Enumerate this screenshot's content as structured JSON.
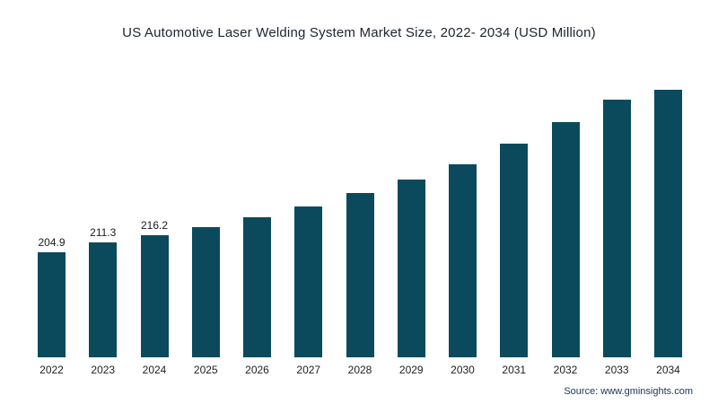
{
  "title": "US Automotive Laser Welding System Market Size, 2022- 2034 (USD Million)",
  "source": "Source: www.gminsights.com",
  "colors": {
    "bar": "#0b4a5d",
    "title_text": "#1c2430",
    "value_label_text": "#1a1a1a",
    "axis_text": "#222222",
    "source_text": "#16365c",
    "background": "#ffffff"
  },
  "chart_data": {
    "type": "bar",
    "title": "US Automotive Laser Welding System Market Size, 2022- 2034 (USD Million)",
    "xlabel": "",
    "ylabel": "",
    "categories": [
      "2022",
      "2023",
      "2024",
      "2025",
      "2026",
      "2027",
      "2028",
      "2029",
      "2030",
      "2031",
      "2032",
      "2033",
      "2034"
    ],
    "values": [
      204.9,
      211.3,
      216.2,
      221.5,
      228.1,
      235.3,
      244.2,
      253.1,
      263.2,
      276.9,
      291.2,
      306.1,
      322.7
    ],
    "value_labels": [
      "204.9",
      "211.3",
      "216.2",
      "",
      "",
      "",
      "",
      "",
      "",
      "",
      "",
      "",
      ""
    ],
    "ylim": [
      135,
      322.7
    ],
    "gridlines": false,
    "y_axis_visible": false,
    "legend": "none",
    "bar_color": "#0b4a5d"
  }
}
